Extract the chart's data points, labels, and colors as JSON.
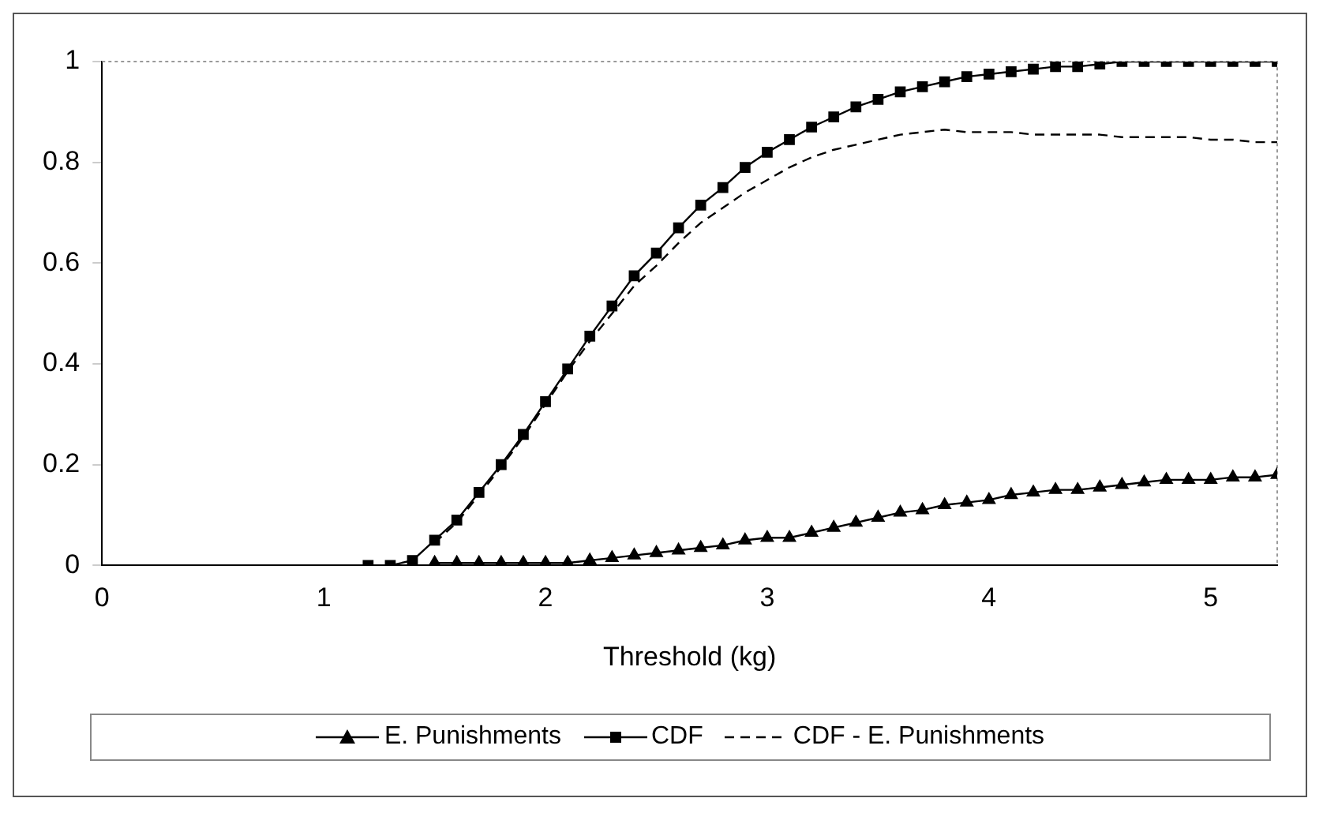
{
  "chart_data": {
    "type": "line",
    "xlabel": "Threshold (kg)",
    "xlim": [
      0,
      5.3
    ],
    "xticks": [
      0,
      1,
      2,
      3,
      4,
      5
    ],
    "ylim": [
      0,
      1
    ],
    "yticks": [
      0,
      0.2,
      0.4,
      0.6,
      0.8,
      1
    ],
    "grid": false,
    "legend": "bottom",
    "series": [
      {
        "name": "E. Punishments",
        "color": "#000000",
        "marker": "triangle",
        "line_style": "solid",
        "x": [
          1.5,
          1.6,
          1.7,
          1.8,
          1.9,
          2.0,
          2.1,
          2.2,
          2.3,
          2.4,
          2.5,
          2.6,
          2.7,
          2.8,
          2.9,
          3.0,
          3.1,
          3.2,
          3.3,
          3.4,
          3.5,
          3.6,
          3.7,
          3.8,
          3.9,
          4.0,
          4.1,
          4.2,
          4.3,
          4.4,
          4.5,
          4.6,
          4.7,
          4.8,
          4.9,
          5.0,
          5.1,
          5.2,
          5.3
        ],
        "values": [
          0.005,
          0.005,
          0.005,
          0.005,
          0.005,
          0.005,
          0.005,
          0.01,
          0.015,
          0.02,
          0.025,
          0.03,
          0.035,
          0.04,
          0.05,
          0.055,
          0.055,
          0.065,
          0.075,
          0.085,
          0.095,
          0.105,
          0.11,
          0.12,
          0.125,
          0.13,
          0.14,
          0.145,
          0.15,
          0.15,
          0.155,
          0.16,
          0.165,
          0.17,
          0.17,
          0.17,
          0.175,
          0.175,
          0.18
        ]
      },
      {
        "name": "CDF",
        "color": "#000000",
        "marker": "square",
        "line_style": "solid",
        "x": [
          1.2,
          1.3,
          1.4,
          1.5,
          1.6,
          1.7,
          1.8,
          1.9,
          2.0,
          2.1,
          2.2,
          2.3,
          2.4,
          2.5,
          2.6,
          2.7,
          2.8,
          2.9,
          3.0,
          3.1,
          3.2,
          3.3,
          3.4,
          3.5,
          3.6,
          3.7,
          3.8,
          3.9,
          4.0,
          4.1,
          4.2,
          4.3,
          4.4,
          4.5,
          4.6,
          4.7,
          4.8,
          4.9,
          5.0,
          5.1,
          5.2,
          5.3
        ],
        "values": [
          0,
          0,
          0.01,
          0.05,
          0.09,
          0.145,
          0.2,
          0.26,
          0.325,
          0.39,
          0.455,
          0.515,
          0.575,
          0.62,
          0.67,
          0.715,
          0.75,
          0.79,
          0.82,
          0.845,
          0.87,
          0.89,
          0.91,
          0.925,
          0.94,
          0.95,
          0.96,
          0.97,
          0.975,
          0.98,
          0.985,
          0.99,
          0.99,
          0.995,
          1,
          1,
          1,
          1,
          1,
          1,
          1,
          1
        ]
      },
      {
        "name": "CDF - E. Punishments",
        "color": "#000000",
        "marker": "none",
        "line_style": "dashed",
        "x": [
          1.5,
          1.6,
          1.7,
          1.8,
          1.9,
          2.0,
          2.1,
          2.2,
          2.3,
          2.4,
          2.5,
          2.6,
          2.7,
          2.8,
          2.9,
          3.0,
          3.1,
          3.2,
          3.3,
          3.4,
          3.5,
          3.6,
          3.7,
          3.8,
          3.9,
          4.0,
          4.1,
          4.2,
          4.3,
          4.4,
          4.5,
          4.6,
          4.7,
          4.8,
          4.9,
          5.0,
          5.1,
          5.2,
          5.3
        ],
        "values": [
          0.045,
          0.085,
          0.14,
          0.195,
          0.255,
          0.32,
          0.385,
          0.445,
          0.5,
          0.555,
          0.595,
          0.64,
          0.68,
          0.71,
          0.74,
          0.765,
          0.79,
          0.81,
          0.825,
          0.835,
          0.845,
          0.855,
          0.86,
          0.865,
          0.86,
          0.86,
          0.86,
          0.855,
          0.855,
          0.855,
          0.855,
          0.85,
          0.85,
          0.85,
          0.85,
          0.845,
          0.845,
          0.84,
          0.84
        ]
      }
    ]
  }
}
